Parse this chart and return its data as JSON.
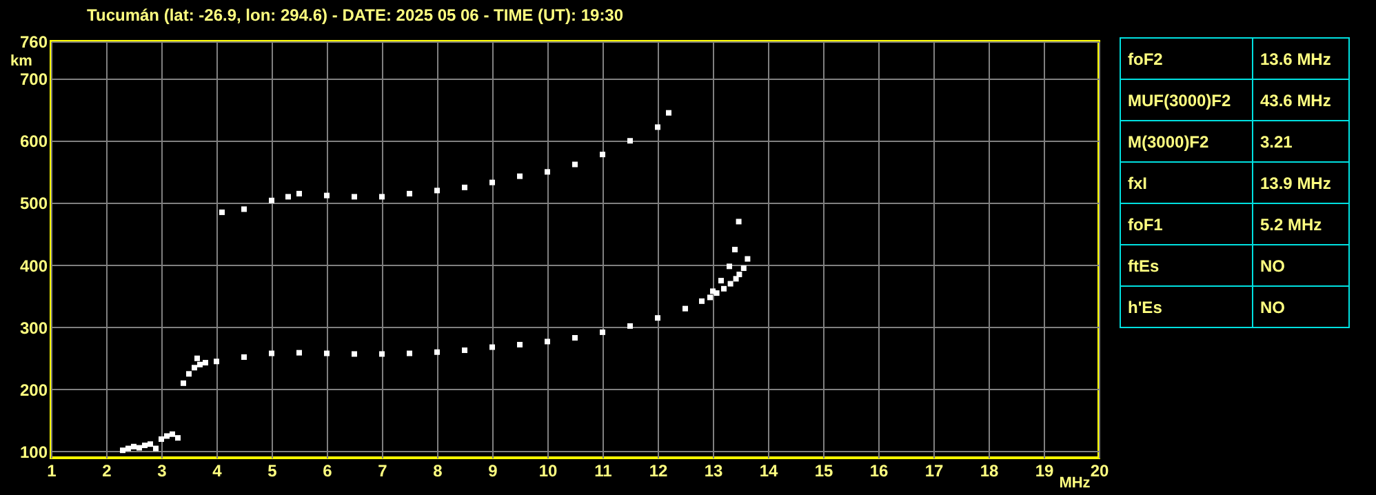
{
  "chart_data": [
    {
      "type": "scatter",
      "title": "Tucumán (lat: -26.9, lon: 294.6) - DATE: 2025 05 06 - TIME (UT): 19:30",
      "xlabel": "MHz",
      "ylabel": "km",
      "xlim": [
        1,
        20
      ],
      "ylim": [
        90,
        760
      ],
      "xticks": [
        1,
        2,
        3,
        4,
        5,
        6,
        7,
        8,
        9,
        10,
        11,
        12,
        13,
        14,
        15,
        16,
        17,
        18,
        19,
        20
      ],
      "yticks": [
        100,
        200,
        300,
        400,
        500,
        600,
        700,
        760
      ],
      "grid": true,
      "marker": "square",
      "series": [
        {
          "color": "#ffffff",
          "x": [
            3.4,
            3.5,
            3.6,
            3.65,
            3.7,
            3.8,
            4,
            4.5,
            5,
            5.5,
            6,
            6.5,
            7,
            7.5,
            8,
            8.5,
            9,
            9.5,
            10,
            10.5,
            11,
            11.5,
            12,
            12.5,
            12.8,
            13,
            13.15,
            13.3,
            13.4,
            13.47
          ],
          "values": [
            210,
            225,
            235,
            250,
            240,
            243,
            245,
            252,
            258,
            259,
            258,
            257,
            257,
            258,
            260,
            263,
            268,
            272,
            277,
            283,
            292,
            302,
            315,
            330,
            342,
            358,
            375,
            398,
            425,
            470
          ]
        },
        {
          "color": "#ffffff",
          "x": [
            12.95,
            13.07,
            13.2,
            13.32,
            13.42,
            13.48,
            13.56,
            13.63
          ],
          "values": [
            348,
            355,
            362,
            370,
            378,
            385,
            395,
            410
          ]
        },
        {
          "color": "#ffffff",
          "x": [
            4.1,
            4.5,
            5,
            5.3,
            5.5,
            6,
            6.5,
            7,
            7.5,
            8,
            8.5,
            9,
            9.5,
            10,
            10.5,
            11,
            11.5,
            12,
            12.2
          ],
          "values": [
            485,
            490,
            504,
            510,
            515,
            512,
            510,
            510,
            515,
            520,
            525,
            533,
            543,
            550,
            562,
            578,
            600,
            622,
            645
          ]
        },
        {
          "color": "#ffffff",
          "x": [
            2.3,
            2.4,
            2.5,
            2.6,
            2.7,
            2.8,
            2.9,
            3,
            3.1,
            3.2,
            3.3
          ],
          "values": [
            102,
            105,
            108,
            106,
            110,
            112,
            105,
            120,
            125,
            128,
            122
          ]
        }
      ]
    },
    {
      "type": "other",
      "annotations": [
        "foF2",
        "13.6 MHz",
        "MUF(3000)F2",
        "43.6 MHz",
        "M(3000)F2",
        "3.21",
        "fxI",
        "13.9 MHz",
        "foF1",
        "5.2 MHz",
        "ftEs",
        "NO",
        "h'Es",
        "NO"
      ]
    }
  ]
}
